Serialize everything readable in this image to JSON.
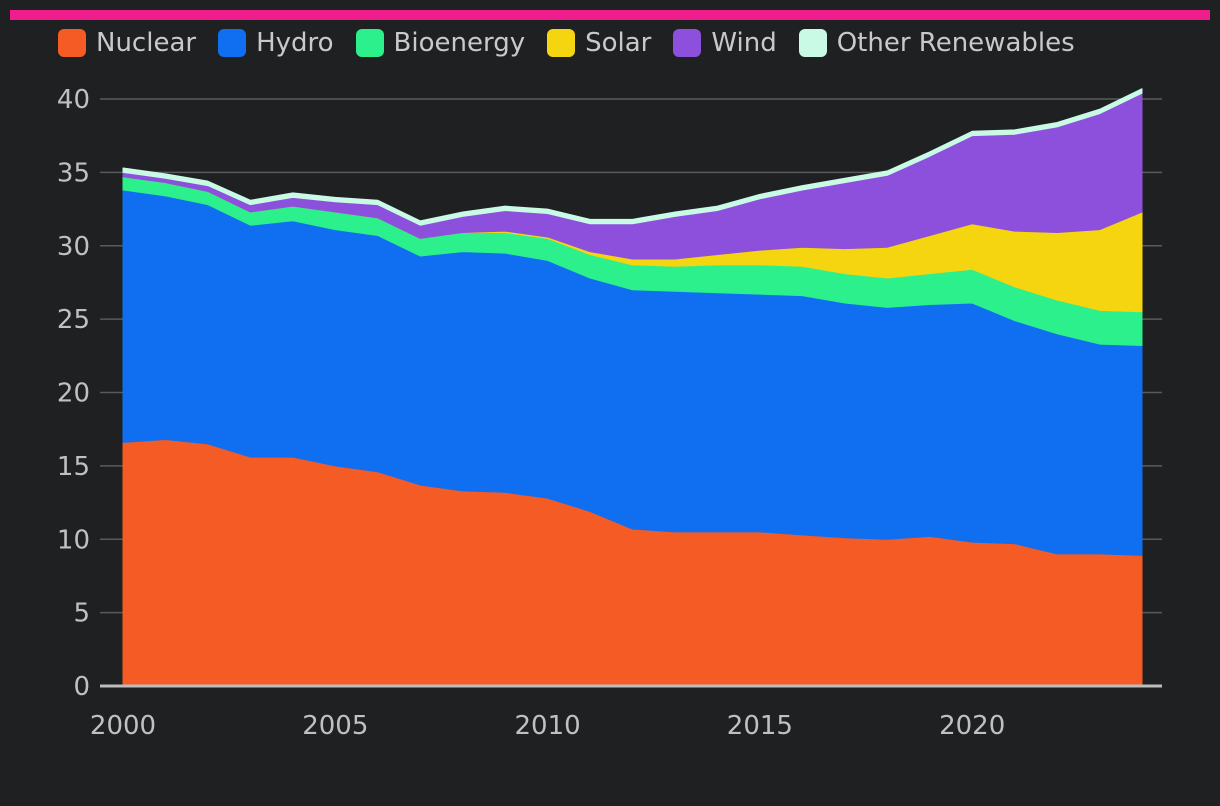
{
  "chart_data": {
    "type": "area",
    "stacked": true,
    "title": "",
    "xlabel": "",
    "ylabel": "",
    "ylim": [
      0,
      40
    ],
    "yticks": [
      0,
      5,
      10,
      15,
      20,
      25,
      30,
      35,
      40
    ],
    "xticks": [
      2000,
      2005,
      2010,
      2015,
      2020
    ],
    "legend_position": "top-left",
    "grid": true,
    "x": [
      2000,
      2001,
      2002,
      2003,
      2004,
      2005,
      2006,
      2007,
      2008,
      2009,
      2010,
      2011,
      2012,
      2013,
      2014,
      2015,
      2016,
      2017,
      2018,
      2019,
      2020,
      2021,
      2022,
      2023,
      2024
    ],
    "series": [
      {
        "name": "Nuclear",
        "color": "#f55b25",
        "values": [
          16.6,
          16.8,
          16.5,
          15.6,
          15.6,
          15.0,
          14.6,
          13.7,
          13.3,
          13.2,
          12.8,
          11.9,
          10.7,
          10.5,
          10.5,
          10.5,
          10.3,
          10.1,
          10.0,
          10.2,
          9.8,
          9.7,
          9.0,
          9.0,
          8.9
        ]
      },
      {
        "name": "Hydro",
        "color": "#0f6ff0",
        "values": [
          17.2,
          16.6,
          16.3,
          15.8,
          16.1,
          16.1,
          16.1,
          15.6,
          16.3,
          16.3,
          16.2,
          15.9,
          16.3,
          16.4,
          16.3,
          16.2,
          16.3,
          16.0,
          15.8,
          15.8,
          16.3,
          15.2,
          15.0,
          14.3,
          14.3
        ]
      },
      {
        "name": "Bioenergy",
        "color": "#2bf08c",
        "values": [
          0.9,
          0.9,
          0.9,
          0.9,
          1.0,
          1.2,
          1.2,
          1.2,
          1.3,
          1.4,
          1.5,
          1.6,
          1.7,
          1.7,
          1.9,
          2.0,
          2.0,
          2.0,
          2.0,
          2.1,
          2.3,
          2.3,
          2.3,
          2.3,
          2.3
        ]
      },
      {
        "name": "Solar",
        "color": "#f5d410",
        "values": [
          0.0,
          0.0,
          0.0,
          0.0,
          0.0,
          0.0,
          0.0,
          0.0,
          0.0,
          0.1,
          0.1,
          0.2,
          0.4,
          0.5,
          0.7,
          1.0,
          1.3,
          1.7,
          2.1,
          2.6,
          3.1,
          3.8,
          4.6,
          5.5,
          6.8
        ]
      },
      {
        "name": "Wind",
        "color": "#8c50dc",
        "values": [
          0.3,
          0.3,
          0.4,
          0.5,
          0.6,
          0.7,
          0.9,
          0.9,
          1.1,
          1.4,
          1.6,
          1.9,
          2.4,
          2.9,
          3.0,
          3.5,
          3.9,
          4.5,
          4.9,
          5.4,
          6.0,
          6.6,
          7.2,
          7.9,
          8.1
        ]
      },
      {
        "name": "Other Renewables",
        "color": "#c8fae6",
        "values": [
          0.3,
          0.3,
          0.3,
          0.3,
          0.3,
          0.3,
          0.3,
          0.3,
          0.3,
          0.3,
          0.3,
          0.3,
          0.3,
          0.3,
          0.3,
          0.3,
          0.3,
          0.3,
          0.3,
          0.3,
          0.3,
          0.3,
          0.3,
          0.3,
          0.3
        ]
      }
    ]
  },
  "colors": {
    "accent_bar": "#f01e8c",
    "background": "#1f2022",
    "grid": "#5a5a5a",
    "axis": "#bdbdbd"
  }
}
